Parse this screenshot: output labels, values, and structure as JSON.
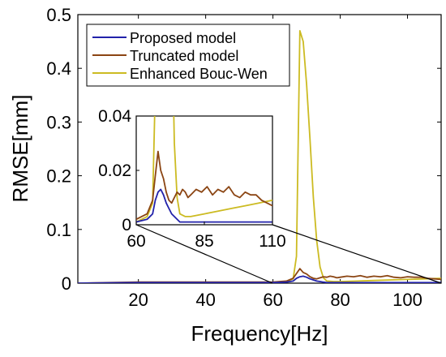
{
  "chart_data": {
    "type": "line",
    "xlabel": "Frequency[Hz]",
    "ylabel": "RMSE[mm]",
    "xlim": [
      2,
      110
    ],
    "ylim": [
      0,
      0.5
    ],
    "xticks": [
      20,
      40,
      60,
      80,
      100
    ],
    "yticks": [
      0,
      0.1,
      0.2,
      0.3,
      0.4,
      0.5
    ],
    "xtick_labels": [
      "20",
      "40",
      "60",
      "80",
      "100"
    ],
    "ytick_labels": [
      "0",
      "0.1",
      "0.2",
      "0.3",
      "0.4",
      "0.5"
    ],
    "grid": false,
    "legend_position": "top-left",
    "series": [
      {
        "name": "Proposed model",
        "color": "#2222aa",
        "x": [
          2,
          20,
          40,
          60,
          64,
          66,
          67,
          68,
          69,
          70,
          71,
          72,
          73,
          74,
          75,
          76,
          78,
          80,
          85,
          90,
          95,
          100,
          105,
          110
        ],
        "y": [
          0.0,
          0.001,
          0.001,
          0.001,
          0.002,
          0.004,
          0.009,
          0.012,
          0.013,
          0.011,
          0.008,
          0.006,
          0.004,
          0.003,
          0.002,
          0.001,
          0.001,
          0.001,
          0.001,
          0.001,
          0.001,
          0.001,
          0.001,
          0.001
        ]
      },
      {
        "name": "Truncated model",
        "color": "#8b4513",
        "x": [
          2,
          20,
          40,
          60,
          64,
          66,
          67,
          68,
          69,
          70,
          71,
          72,
          73,
          74,
          75,
          76,
          77,
          78,
          79,
          80,
          82,
          84,
          86,
          88,
          90,
          92,
          94,
          96,
          98,
          100,
          102,
          104,
          106,
          108,
          110
        ],
        "y": [
          0.0,
          0.002,
          0.002,
          0.002,
          0.004,
          0.009,
          0.018,
          0.027,
          0.02,
          0.017,
          0.012,
          0.009,
          0.008,
          0.01,
          0.012,
          0.011,
          0.013,
          0.012,
          0.01,
          0.011,
          0.013,
          0.012,
          0.014,
          0.011,
          0.013,
          0.012,
          0.014,
          0.011,
          0.01,
          0.012,
          0.011,
          0.011,
          0.009,
          0.008,
          0.007
        ]
      },
      {
        "name": "Enhanced Bouc-Wen",
        "color": "#ccbb22",
        "x": [
          2,
          20,
          40,
          60,
          64,
          66,
          67,
          68,
          69,
          70,
          71,
          72,
          73,
          74,
          75,
          76,
          78,
          80,
          85,
          90,
          95,
          100,
          105,
          110
        ],
        "y": [
          0.0,
          0.0,
          0.0,
          0.001,
          0.003,
          0.008,
          0.05,
          0.47,
          0.45,
          0.37,
          0.27,
          0.16,
          0.08,
          0.03,
          0.01,
          0.004,
          0.003,
          0.003,
          0.004,
          0.005,
          0.006,
          0.007,
          0.008,
          0.009
        ]
      }
    ],
    "inset": {
      "xlim": [
        60,
        110
      ],
      "ylim": [
        0,
        0.04
      ],
      "xticks": [
        60,
        85,
        110
      ],
      "yticks": [
        0,
        0.02,
        0.04
      ],
      "xtick_labels": [
        "60",
        "85",
        "110"
      ],
      "ytick_labels": [
        "0",
        "0.02",
        "0.04"
      ]
    }
  }
}
